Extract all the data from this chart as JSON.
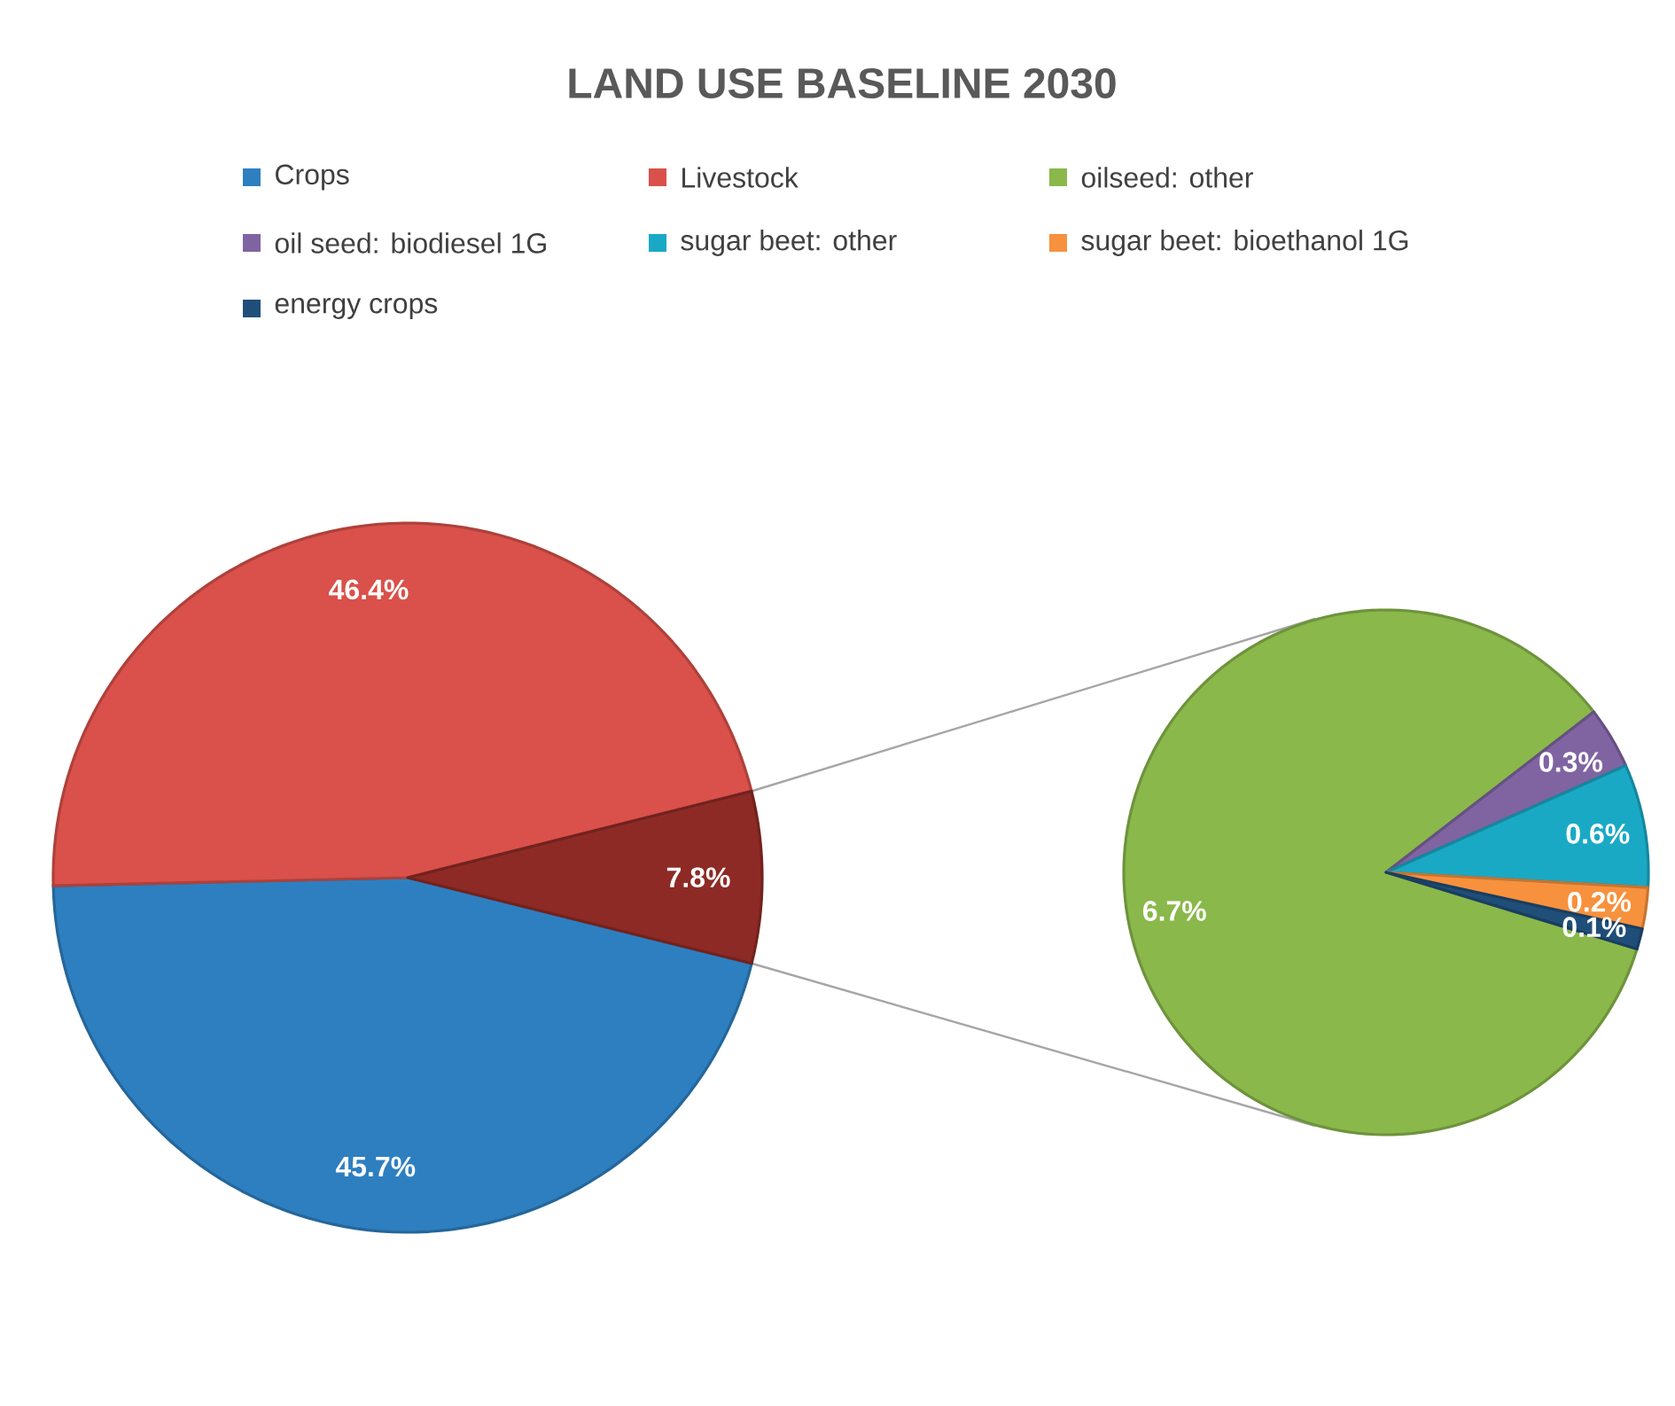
{
  "chart_data": [
    {
      "type": "pie",
      "title": "LAND USE BASELINE 2030",
      "legend": "top",
      "categories": [
        "Crops",
        "Livestock",
        null
      ],
      "values": [
        45.7,
        46.4,
        7.8
      ],
      "colors": [
        "#2e7fc0",
        "#d9514a",
        "#8e2a25"
      ],
      "value_labels": [
        "45.7%",
        "46.4%",
        "7.8%"
      ]
    },
    {
      "type": "pie",
      "legend": "top",
      "categories": [
        "oilseed: other",
        "oil seed: biodiesel 1G",
        "sugar beet: other",
        "sugar beet: bioethanol 1G",
        "energy crops"
      ],
      "values": [
        6.7,
        0.3,
        0.6,
        0.2,
        0.1
      ],
      "colors": [
        "#8ab84b",
        "#8064a2",
        "#1aa9c5",
        "#f7913d",
        "#1f4e79"
      ],
      "value_labels": [
        "6.7%",
        "0.3%",
        "0.6%",
        "0.2%",
        "0.1%"
      ]
    }
  ]
}
